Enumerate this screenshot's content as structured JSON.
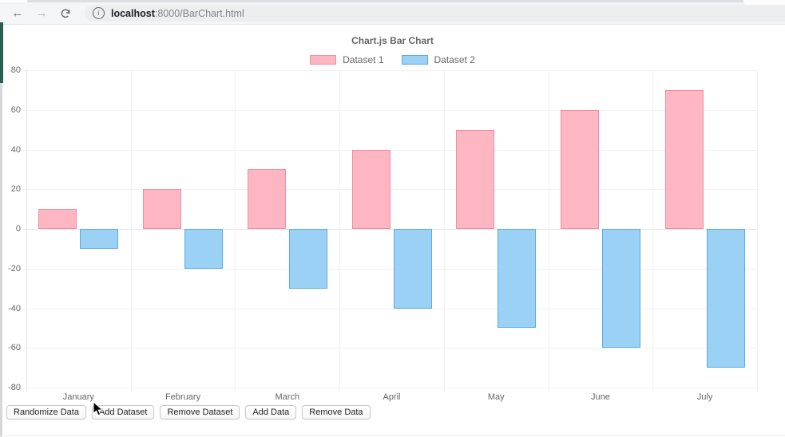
{
  "browser": {
    "back_icon": "arrow-left",
    "forward_icon": "arrow-right",
    "refresh_icon": "refresh",
    "info_icon": "info-circle",
    "url_host": "localhost",
    "url_rest": ":8000/BarChart.html"
  },
  "chart_data": {
    "type": "bar",
    "title": "Chart.js Bar Chart",
    "categories": [
      "January",
      "February",
      "March",
      "April",
      "May",
      "June",
      "July"
    ],
    "series": [
      {
        "name": "Dataset 1",
        "values": [
          10,
          20,
          30,
          40,
          50,
          60,
          70
        ],
        "fill": "#ffb6c3",
        "border": "#f28ca1"
      },
      {
        "name": "Dataset 2",
        "values": [
          -10,
          -20,
          -30,
          -40,
          -50,
          -60,
          -70
        ],
        "fill": "#9bd1f4",
        "border": "#5aabe2"
      }
    ],
    "ylim": [
      -80,
      80
    ],
    "ytick_step": 20,
    "yticks": [
      80,
      60,
      40,
      20,
      0,
      -20,
      -40,
      -60,
      -80
    ],
    "legend_position": "top",
    "grid": true,
    "xlabel": "",
    "ylabel": ""
  },
  "controls": {
    "buttons": [
      "Randomize Data",
      "Add Dataset",
      "Remove Dataset",
      "Add Data",
      "Remove Data"
    ]
  }
}
